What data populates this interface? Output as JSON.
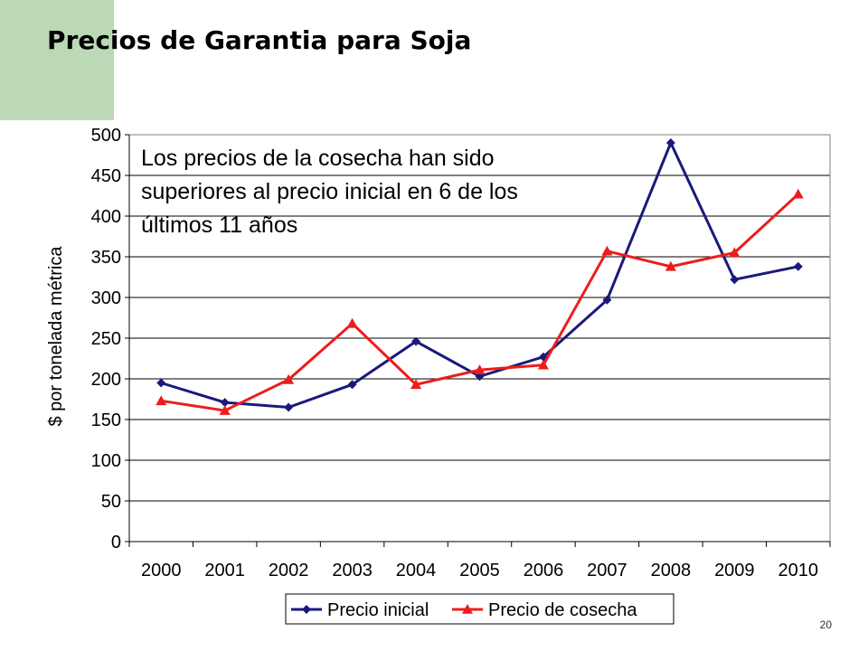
{
  "slide": {
    "title": "Precios de Garantia para Soja",
    "page_number": "20"
  },
  "chart_data": {
    "type": "line",
    "title": "",
    "xlabel": "",
    "ylabel": "$ por tonelada métrica",
    "categories": [
      "2000",
      "2001",
      "2002",
      "2003",
      "2004",
      "2005",
      "2006",
      "2007",
      "2008",
      "2009",
      "2010"
    ],
    "ylim": [
      0,
      500
    ],
    "yticks": [
      0,
      50,
      100,
      150,
      200,
      250,
      300,
      350,
      400,
      450,
      500
    ],
    "grid": true,
    "legend": "bottom",
    "annotation": [
      "Los precios de la cosecha han sido",
      "superiores al precio inicial en 6 de los",
      "últimos 11 años"
    ],
    "series": [
      {
        "name": "Precio inicial",
        "color": "#1a1a7a",
        "marker": "diamond",
        "values": [
          195,
          171,
          165,
          193,
          246,
          203,
          227,
          297,
          490,
          322,
          338
        ]
      },
      {
        "name": "Precio de cosecha",
        "color": "#ee1c1c",
        "marker": "triangle",
        "values": [
          173,
          161,
          199,
          268,
          193,
          211,
          217,
          357,
          338,
          355,
          427
        ]
      }
    ]
  }
}
